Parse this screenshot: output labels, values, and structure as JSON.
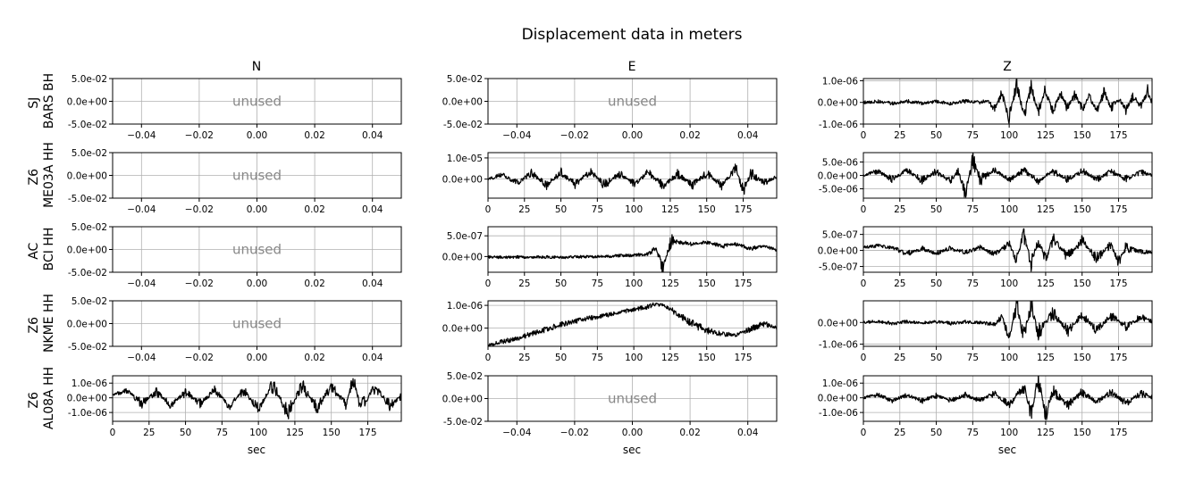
{
  "title": "Displacement data in meters",
  "columns": [
    "N",
    "E",
    "Z"
  ],
  "rows": [
    {
      "line1": "SJ",
      "line2": "BARS BH"
    },
    {
      "line1": "Z6",
      "line2": "ME03A HH"
    },
    {
      "line1": "AC",
      "line2": "BCI HH"
    },
    {
      "line1": "Z6",
      "line2": "NKME HH"
    },
    {
      "line1": "Z6",
      "line2": "AL08A HH"
    }
  ],
  "xlabel": "sec",
  "unused_text": "unused",
  "chart_data": [
    {
      "type": "line",
      "row": 0,
      "col": 0,
      "unused": true,
      "xlim": [
        -0.05,
        0.05
      ],
      "xticks": [
        -0.04,
        -0.02,
        0.0,
        0.02,
        0.04
      ],
      "xtick_labels": [
        "−0.04",
        "−0.02",
        "0.00",
        "0.02",
        "0.04"
      ],
      "ylim": [
        -0.05,
        0.05
      ],
      "yticks": [
        -0.05,
        0.0,
        0.05
      ],
      "ytick_labels": [
        "-5.0e-02",
        "0.0e+00",
        "5.0e-02"
      ],
      "grid": true
    },
    {
      "type": "line",
      "row": 0,
      "col": 1,
      "unused": true,
      "xlim": [
        -0.05,
        0.05
      ],
      "xticks": [
        -0.04,
        -0.02,
        0.0,
        0.02,
        0.04
      ],
      "xtick_labels": [
        "−0.04",
        "−0.02",
        "0.00",
        "0.02",
        "0.04"
      ],
      "ylim": [
        -0.05,
        0.05
      ],
      "yticks": [
        -0.05,
        0.0,
        0.05
      ],
      "ytick_labels": [
        "-5.0e-02",
        "0.0e+00",
        "5.0e-02"
      ],
      "grid": true
    },
    {
      "type": "line",
      "row": 0,
      "col": 2,
      "unused": false,
      "xlim": [
        0,
        198
      ],
      "xticks": [
        0,
        25,
        50,
        75,
        100,
        125,
        150,
        175
      ],
      "xtick_labels": [
        "0",
        "25",
        "50",
        "75",
        "100",
        "125",
        "150",
        "175"
      ],
      "ylim": [
        -1e-06,
        1.1e-06
      ],
      "yticks": [
        -1e-06,
        0.0,
        1e-06
      ],
      "ytick_labels": [
        "-1.0e-06",
        "0.0e+00",
        "1.0e-06"
      ],
      "grid": true,
      "x": [
        0,
        10,
        20,
        30,
        40,
        50,
        60,
        70,
        80,
        85,
        90,
        95,
        100,
        105,
        110,
        115,
        120,
        125,
        130,
        135,
        140,
        145,
        150,
        155,
        160,
        165,
        170,
        175,
        180,
        185,
        190,
        195,
        198
      ],
      "y": [
        0,
        5e-08,
        -5e-08,
        5e-08,
        -3e-08,
        4e-08,
        -5e-08,
        6e-08,
        0.0,
        1e-07,
        -3e-07,
        4e-07,
        -7e-07,
        9e-07,
        -6e-07,
        7e-07,
        -5e-07,
        6e-07,
        -4e-07,
        5e-07,
        -3e-07,
        3.5e-07,
        -3e-07,
        2.5e-07,
        -4e-07,
        4.5e-07,
        -2.5e-07,
        2e-07,
        -3.5e-07,
        3e-07,
        -2e-07,
        5.5e-07,
        -5e-08
      ]
    },
    {
      "type": "line",
      "row": 1,
      "col": 0,
      "unused": true,
      "xlim": [
        -0.05,
        0.05
      ],
      "xticks": [
        -0.04,
        -0.02,
        0.0,
        0.02,
        0.04
      ],
      "xtick_labels": [
        "−0.04",
        "−0.02",
        "0.00",
        "0.02",
        "0.04"
      ],
      "ylim": [
        -0.05,
        0.05
      ],
      "yticks": [
        -0.05,
        0.0,
        0.05
      ],
      "ytick_labels": [
        "-5.0e-02",
        "0.0e+00",
        "5.0e-02"
      ],
      "grid": true
    },
    {
      "type": "line",
      "row": 1,
      "col": 1,
      "unused": false,
      "xlim": [
        0,
        198
      ],
      "xticks": [
        0,
        25,
        50,
        75,
        100,
        125,
        150,
        175
      ],
      "xtick_labels": [
        "0",
        "25",
        "50",
        "75",
        "100",
        "125",
        "150",
        "175"
      ],
      "ylim": [
        -9e-06,
        1.25e-05
      ],
      "yticks": [
        0.0,
        1e-05
      ],
      "ytick_labels": [
        "0.0e+00",
        "1.0e-05"
      ],
      "grid": true,
      "x": [
        0,
        10,
        20,
        30,
        40,
        50,
        60,
        70,
        80,
        90,
        100,
        110,
        120,
        130,
        140,
        150,
        160,
        170,
        175,
        180,
        190,
        198
      ],
      "y": [
        0,
        2e-06,
        -2e-06,
        3e-06,
        -3e-06,
        3e-06,
        -2.5e-06,
        4e-06,
        -3e-06,
        3e-06,
        -2.5e-06,
        3e-06,
        -3e-06,
        2.5e-06,
        -3e-06,
        3e-06,
        -3e-06,
        5e-06,
        -6e-06,
        3e-06,
        -2e-06,
        1e-06
      ]
    },
    {
      "type": "line",
      "row": 1,
      "col": 2,
      "unused": false,
      "xlim": [
        0,
        198
      ],
      "xticks": [
        0,
        25,
        50,
        75,
        100,
        125,
        150,
        175
      ],
      "xtick_labels": [
        "0",
        "25",
        "50",
        "75",
        "100",
        "125",
        "150",
        "175"
      ],
      "ylim": [
        -8.5e-06,
        8.5e-06
      ],
      "yticks": [
        -5e-06,
        0.0,
        5e-06
      ],
      "ytick_labels": [
        "-5.0e-06",
        "0.0e+00",
        "5.0e-06"
      ],
      "grid": true,
      "x": [
        0,
        10,
        20,
        30,
        40,
        50,
        60,
        65,
        70,
        75,
        80,
        90,
        100,
        110,
        120,
        130,
        140,
        150,
        160,
        170,
        180,
        190,
        198
      ],
      "y": [
        0,
        1.5e-06,
        -1.5e-06,
        2e-06,
        -1.8e-06,
        1.5e-06,
        -2e-06,
        1.5e-06,
        -7e-06,
        6e-06,
        -1.5e-06,
        1.8e-06,
        -1.5e-06,
        1.8e-06,
        -2e-06,
        1.5e-06,
        -1.5e-06,
        1.7e-06,
        -1.6e-06,
        1.5e-06,
        -1.3e-06,
        1.2e-06,
        0
      ]
    },
    {
      "type": "line",
      "row": 2,
      "col": 0,
      "unused": true,
      "xlim": [
        -0.05,
        0.05
      ],
      "xticks": [
        -0.04,
        -0.02,
        0.0,
        0.02,
        0.04
      ],
      "xtick_labels": [
        "−0.04",
        "−0.02",
        "0.00",
        "0.02",
        "0.04"
      ],
      "ylim": [
        -0.05,
        0.05
      ],
      "yticks": [
        -0.05,
        0.0,
        0.05
      ],
      "ytick_labels": [
        "-5.0e-02",
        "0.0e+00",
        "5.0e-02"
      ],
      "grid": true
    },
    {
      "type": "line",
      "row": 2,
      "col": 1,
      "unused": false,
      "xlim": [
        0,
        198
      ],
      "xticks": [
        0,
        25,
        50,
        75,
        100,
        125,
        150,
        175
      ],
      "xtick_labels": [
        "0",
        "25",
        "50",
        "75",
        "100",
        "125",
        "150",
        "175"
      ],
      "ylim": [
        -3.8e-07,
        7.2e-07
      ],
      "yticks": [
        0.0,
        5e-07
      ],
      "ytick_labels": [
        "0.0e+00",
        "5.0e-07"
      ],
      "grid": true,
      "x": [
        0,
        10,
        20,
        30,
        40,
        50,
        60,
        70,
        80,
        90,
        100,
        110,
        115,
        120,
        125,
        130,
        140,
        150,
        160,
        170,
        180,
        190,
        198
      ],
      "y": [
        -1e-08,
        -2e-08,
        -1e-08,
        -1.5e-08,
        -1e-08,
        -2e-08,
        -1e-08,
        -5e-09,
        0.0,
        2e-08,
        3e-08,
        6e-08,
        2e-07,
        -3e-07,
        4e-07,
        3.5e-07,
        3e-07,
        3.5e-07,
        2.5e-07,
        3e-07,
        2e-07,
        2.5e-07,
        1.5e-07
      ]
    },
    {
      "type": "line",
      "row": 2,
      "col": 2,
      "unused": false,
      "xlim": [
        0,
        198
      ],
      "xticks": [
        0,
        25,
        50,
        75,
        100,
        125,
        150,
        175
      ],
      "xtick_labels": [
        "0",
        "25",
        "50",
        "75",
        "100",
        "125",
        "150",
        "175"
      ],
      "ylim": [
        -6.8e-07,
        7.4e-07
      ],
      "yticks": [
        -5e-07,
        0.0,
        5e-07
      ],
      "ytick_labels": [
        "-5.0e-07",
        "0.0e+00",
        "5.0e-07"
      ],
      "grid": true,
      "x": [
        0,
        10,
        20,
        30,
        40,
        50,
        60,
        70,
        80,
        90,
        100,
        105,
        110,
        115,
        120,
        125,
        130,
        140,
        150,
        160,
        170,
        175,
        180,
        190,
        198
      ],
      "y": [
        1e-07,
        1.5e-07,
        8e-08,
        -1e-07,
        6e-08,
        -8e-08,
        7e-08,
        -6e-08,
        9e-08,
        -1.2e-07,
        2e-07,
        -3e-07,
        5e-07,
        -4e-07,
        4e-07,
        -3e-07,
        3.5e-07,
        -2e-07,
        3e-07,
        -2.5e-07,
        2e-07,
        -4e-07,
        1e-07,
        -5e-08,
        -5e-08
      ]
    },
    {
      "type": "line",
      "row": 3,
      "col": 0,
      "unused": true,
      "xlim": [
        -0.05,
        0.05
      ],
      "xticks": [
        -0.04,
        -0.02,
        0.0,
        0.02,
        0.04
      ],
      "xtick_labels": [
        "−0.04",
        "−0.02",
        "0.00",
        "0.02",
        "0.04"
      ],
      "ylim": [
        -0.05,
        0.05
      ],
      "yticks": [
        -0.05,
        0.0,
        0.05
      ],
      "ytick_labels": [
        "-5.0e-02",
        "0.0e+00",
        "5.0e-02"
      ],
      "grid": true
    },
    {
      "type": "line",
      "row": 3,
      "col": 1,
      "unused": false,
      "xlim": [
        0,
        198
      ],
      "xticks": [
        0,
        25,
        50,
        75,
        100,
        125,
        150,
        175
      ],
      "xtick_labels": [
        "0",
        "25",
        "50",
        "75",
        "100",
        "125",
        "150",
        "175"
      ],
      "ylim": [
        -8e-07,
        1.2e-06
      ],
      "yticks": [
        0.0,
        1e-06
      ],
      "ytick_labels": [
        "0.0e+00",
        "1.0e-06"
      ],
      "grid": true,
      "x": [
        0,
        10,
        20,
        30,
        40,
        50,
        60,
        70,
        80,
        90,
        100,
        110,
        115,
        120,
        125,
        130,
        140,
        150,
        160,
        170,
        180,
        190,
        198
      ],
      "y": [
        -7.5e-07,
        -6e-07,
        -4.5e-07,
        -2.5e-07,
        -5e-08,
        1.5e-07,
        3e-07,
        4.5e-07,
        5.5e-07,
        7e-07,
        8e-07,
        9.5e-07,
        1.05e-06,
        1e-06,
        8.5e-07,
        6e-07,
        2e-07,
        -1e-07,
        -2.5e-07,
        -3e-07,
        -5e-08,
        2e-07,
        0.0
      ]
    },
    {
      "type": "line",
      "row": 3,
      "col": 2,
      "unused": false,
      "xlim": [
        0,
        198
      ],
      "xticks": [
        0,
        25,
        50,
        75,
        100,
        125,
        150,
        175
      ],
      "xtick_labels": [
        "0",
        "25",
        "50",
        "75",
        "100",
        "125",
        "150",
        "175"
      ],
      "ylim": [
        -1.1e-06,
        1e-06
      ],
      "yticks": [
        -1e-06,
        0.0
      ],
      "ytick_labels": [
        "-1.0e-06",
        "0.0e+00"
      ],
      "grid": true,
      "x": [
        0,
        10,
        20,
        30,
        40,
        50,
        60,
        70,
        80,
        90,
        95,
        100,
        105,
        110,
        115,
        120,
        130,
        140,
        150,
        160,
        170,
        180,
        190,
        198
      ],
      "y": [
        0,
        5e-08,
        -5e-08,
        4e-08,
        -3e-08,
        5e-08,
        -5e-08,
        3e-08,
        0.0,
        -1e-07,
        3e-07,
        -8e-07,
        9e-07,
        -7e-07,
        8e-07,
        -5e-07,
        4.5e-07,
        -4e-07,
        3.5e-07,
        -3.5e-07,
        3e-07,
        -2e-07,
        2.5e-07,
        5e-08
      ]
    },
    {
      "type": "line",
      "row": 4,
      "col": 0,
      "unused": false,
      "xlim": [
        0,
        198
      ],
      "xticks": [
        0,
        25,
        50,
        75,
        100,
        125,
        150,
        175
      ],
      "xtick_labels": [
        "0",
        "25",
        "50",
        "75",
        "100",
        "125",
        "150",
        "175"
      ],
      "ylim": [
        -1.6e-06,
        1.5e-06
      ],
      "yticks": [
        -1e-06,
        0.0,
        1e-06
      ],
      "ytick_labels": [
        "-1.0e-06",
        "0.0e+00",
        "1.0e-06"
      ],
      "grid": true,
      "x": [
        0,
        10,
        20,
        30,
        40,
        50,
        60,
        70,
        80,
        90,
        100,
        110,
        120,
        130,
        140,
        150,
        160,
        165,
        170,
        180,
        190,
        198
      ],
      "y": [
        2e-07,
        5e-07,
        -4e-07,
        4e-07,
        -5e-07,
        4e-07,
        -4e-07,
        5e-07,
        -5e-07,
        5e-07,
        -8e-07,
        9e-07,
        -1e-06,
        8e-07,
        -7e-07,
        8e-07,
        -5e-07,
        1.3e-06,
        -6e-07,
        7e-07,
        -5e-07,
        1e-07
      ]
    },
    {
      "type": "line",
      "row": 4,
      "col": 1,
      "unused": true,
      "xlim": [
        -0.05,
        0.05
      ],
      "xticks": [
        -0.04,
        -0.02,
        0.0,
        0.02,
        0.04
      ],
      "xtick_labels": [
        "−0.04",
        "−0.02",
        "0.00",
        "0.02",
        "0.04"
      ],
      "ylim": [
        -0.05,
        0.05
      ],
      "yticks": [
        -0.05,
        0.0,
        0.05
      ],
      "ytick_labels": [
        "-5.0e-02",
        "0.0e+00",
        "5.0e-02"
      ],
      "grid": true
    },
    {
      "type": "line",
      "row": 4,
      "col": 2,
      "unused": false,
      "xlim": [
        0,
        198
      ],
      "xticks": [
        0,
        25,
        50,
        75,
        100,
        125,
        150,
        175
      ],
      "xtick_labels": [
        "0",
        "25",
        "50",
        "75",
        "100",
        "125",
        "150",
        "175"
      ],
      "ylim": [
        -1.6e-06,
        1.5e-06
      ],
      "yticks": [
        -1e-06,
        0.0,
        1e-06
      ],
      "ytick_labels": [
        "-1.0e-06",
        "0.0e+00",
        "1.0e-06"
      ],
      "grid": true,
      "x": [
        0,
        10,
        20,
        30,
        40,
        50,
        60,
        70,
        80,
        90,
        100,
        110,
        115,
        120,
        125,
        130,
        140,
        150,
        160,
        170,
        180,
        190,
        198
      ],
      "y": [
        0,
        2e-07,
        -2e-07,
        2e-07,
        -2e-07,
        1.5e-07,
        -2e-07,
        2e-07,
        -2e-07,
        3e-07,
        -5e-07,
        8e-07,
        -1.2e-06,
        1.3e-06,
        -1.1e-06,
        5e-07,
        -5e-07,
        4e-07,
        -3e-07,
        4e-07,
        -3.5e-07,
        3e-07,
        5e-08
      ]
    }
  ]
}
